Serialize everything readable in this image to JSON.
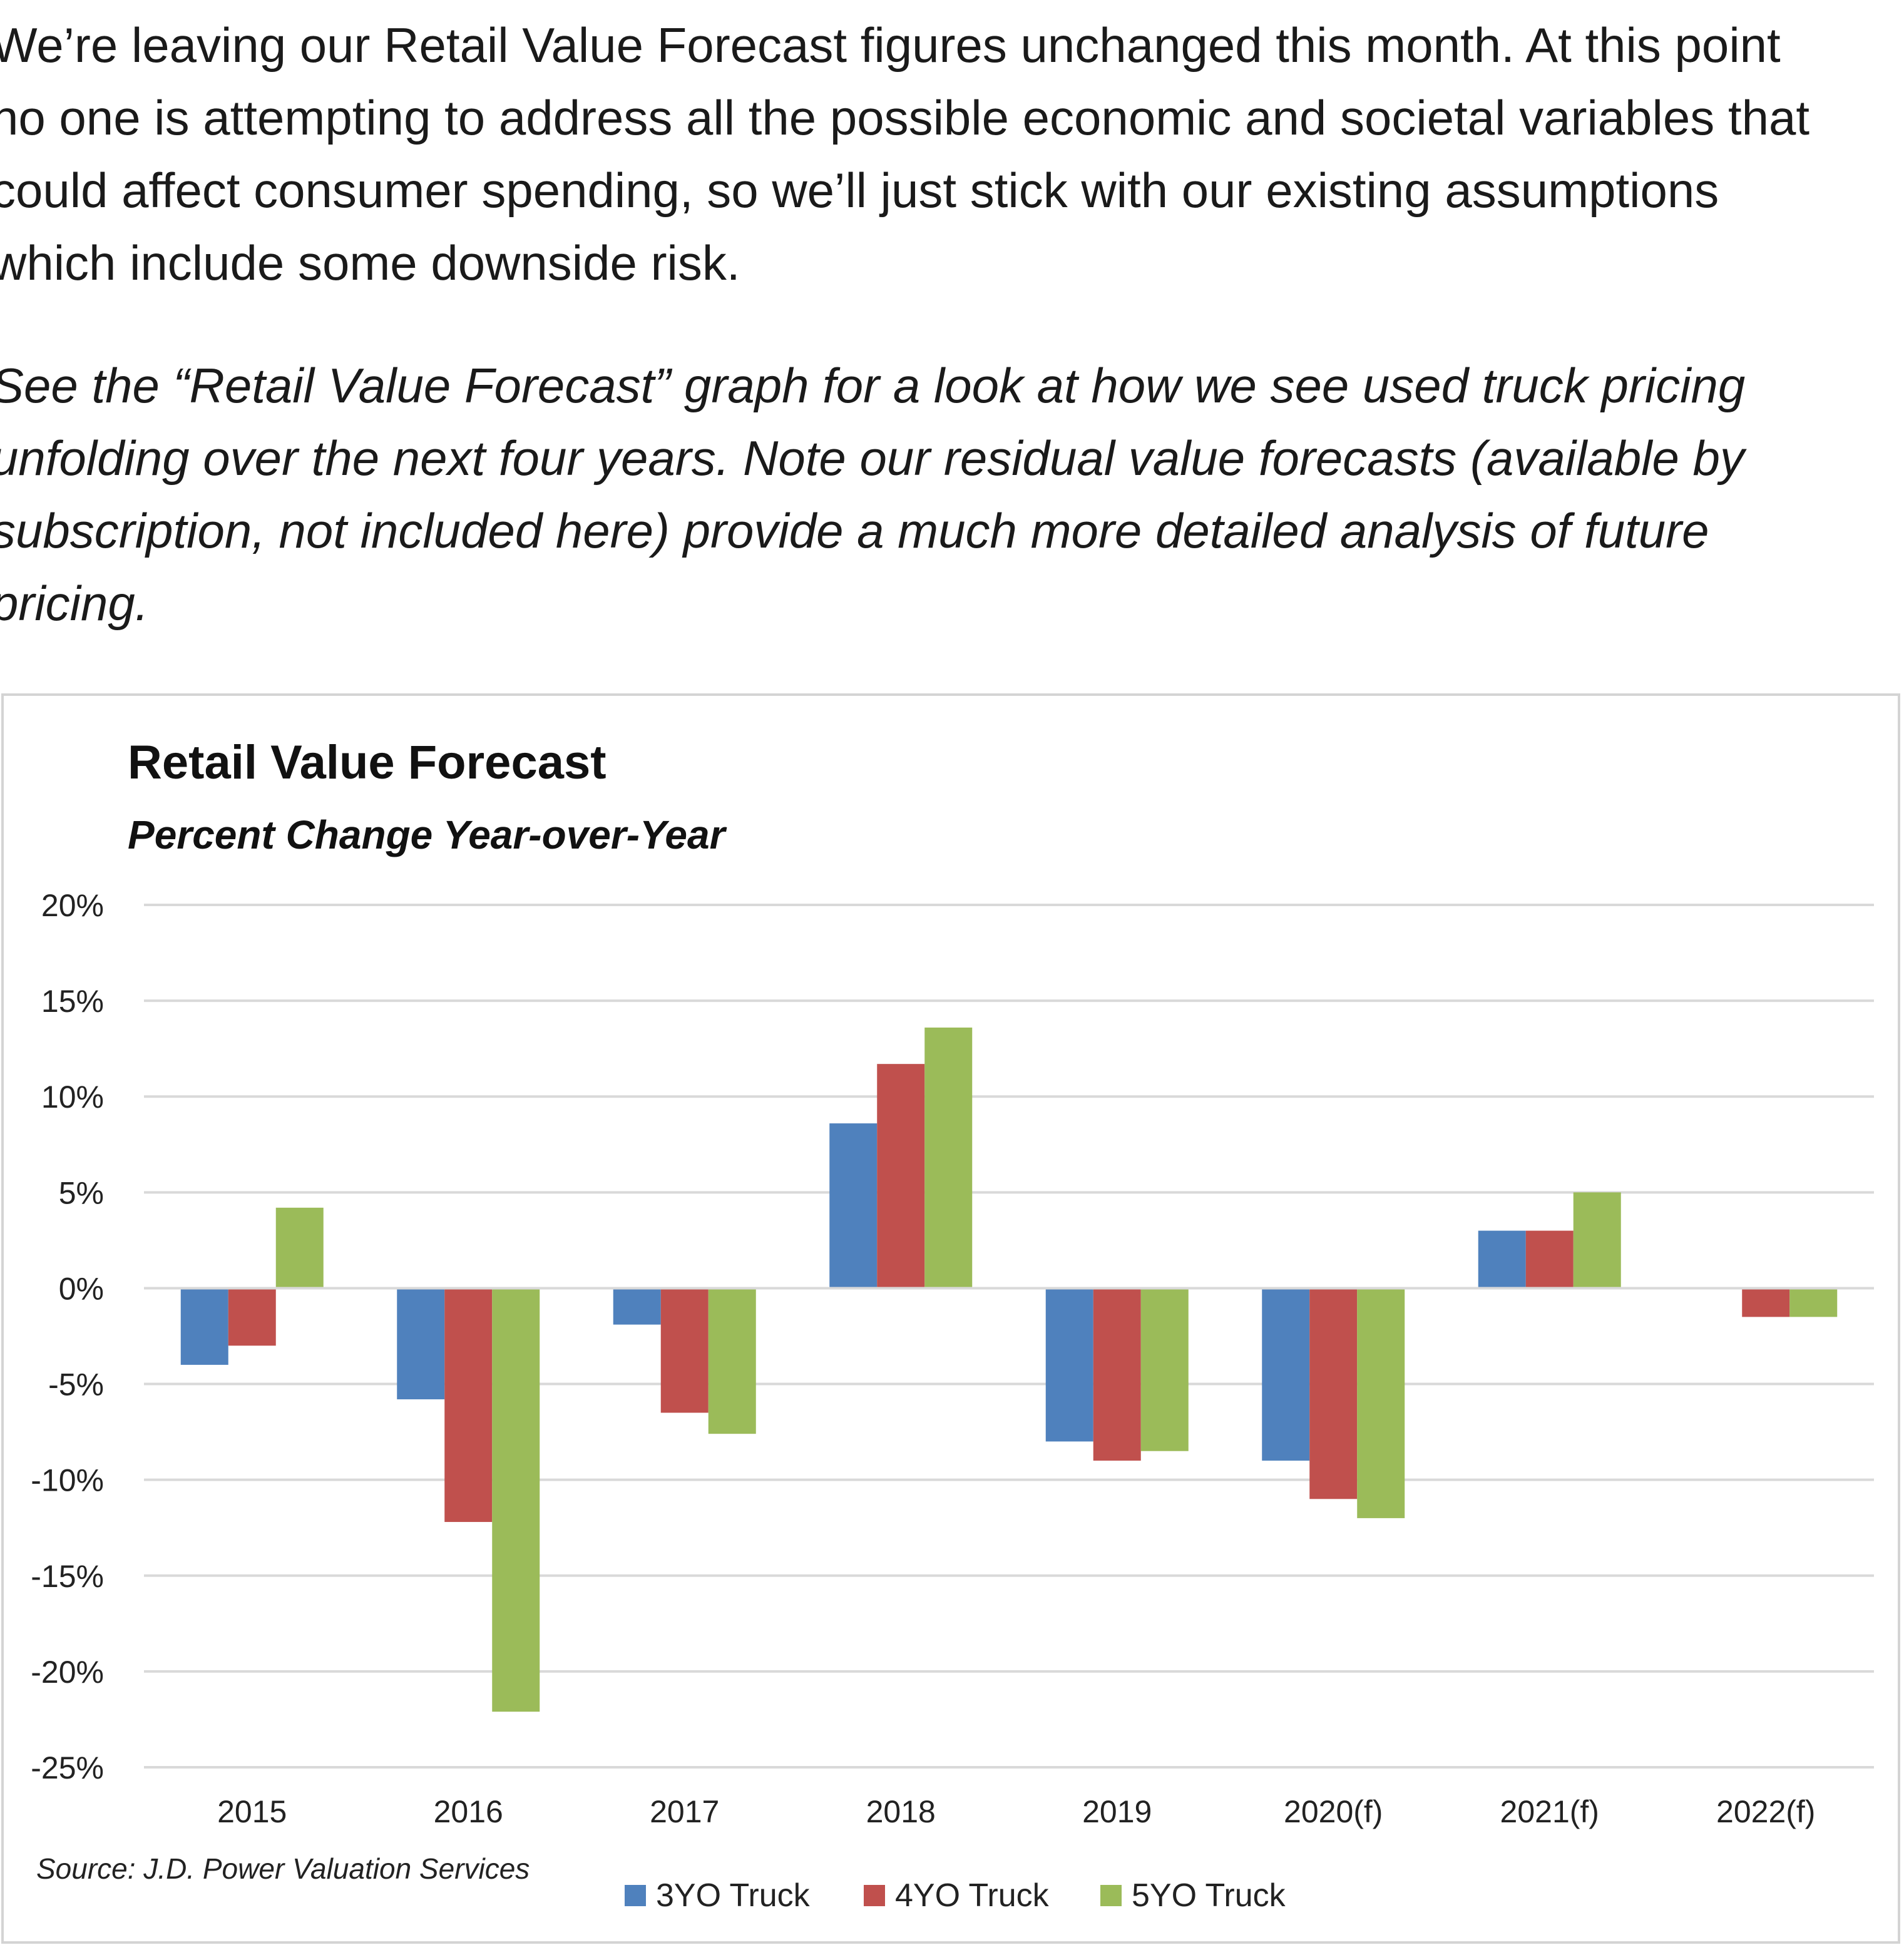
{
  "article": {
    "paragraph1_lines": [
      "We’re leaving our Retail Value Forecast figures unchanged this month. At this point",
      "no one is attempting to address all the possible economic and societal variables that",
      "could affect consumer spending, so we’ll just stick with our existing assumptions",
      "which include some downside risk."
    ],
    "paragraph2_lines": [
      "See the “Retail Value Forecast” graph for a look at how we see used truck pricing",
      "unfolding over the next four years. Note our residual value forecasts (available by",
      "subscription, not included here) provide a much more detailed analysis of future",
      "pricing."
    ]
  },
  "chart_data": {
    "type": "bar",
    "title": "Retail Value Forecast",
    "subtitle": "Percent Change Year-over-Year",
    "xlabel": "",
    "ylabel": "",
    "categories": [
      "2015",
      "2016",
      "2017",
      "2018",
      "2019",
      "2020(f)",
      "2021(f)",
      "2022(f)"
    ],
    "series": [
      {
        "name": "3YO Truck",
        "color": "#4f81bd",
        "values": [
          -4.0,
          -5.8,
          -1.9,
          8.6,
          -8.0,
          -9.0,
          3.0,
          0.0
        ]
      },
      {
        "name": "4YO Truck",
        "color": "#c0504d",
        "values": [
          -3.0,
          -12.2,
          -6.5,
          11.7,
          -9.0,
          -11.0,
          3.0,
          -1.5
        ]
      },
      {
        "name": "5YO Truck",
        "color": "#9bbb59",
        "values": [
          4.2,
          -22.1,
          -7.6,
          13.6,
          -8.5,
          -12.0,
          5.0,
          -1.5
        ]
      }
    ],
    "ylim": [
      -25,
      20
    ],
    "yticks": [
      20,
      15,
      10,
      5,
      0,
      -5,
      -10,
      -15,
      -20,
      -25
    ],
    "ytick_labels": [
      "20%",
      "15%",
      "10%",
      "5%",
      "0%",
      "-5%",
      "-10%",
      "-15%",
      "-20%",
      "-25%"
    ],
    "grid": true,
    "legend_position": "bottom-center",
    "source": "Source: J.D. Power Valuation Services",
    "gridline_color": "#d9d9d9"
  }
}
